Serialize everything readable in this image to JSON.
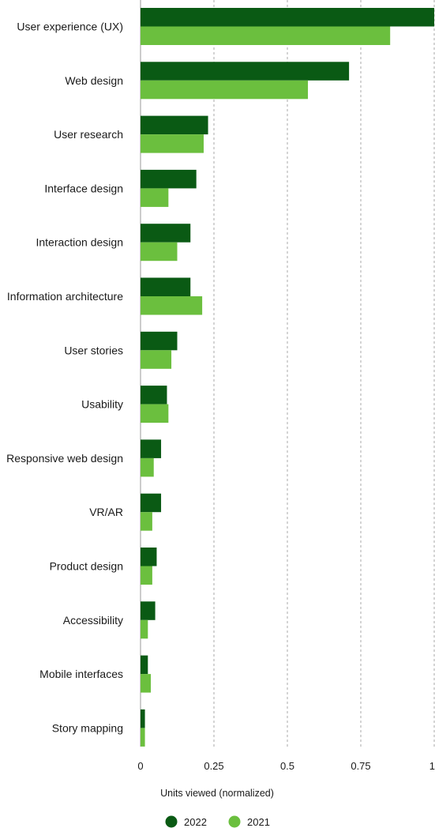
{
  "chart_data": {
    "type": "bar",
    "orientation": "horizontal",
    "categories": [
      "User experience (UX)",
      "Web design",
      "User research",
      "Interface design",
      "Interaction design",
      "Information architecture",
      "User stories",
      "Usability",
      "Responsive web design",
      "VR/AR",
      "Product design",
      "Accessibility",
      "Mobile interfaces",
      "Story mapping"
    ],
    "series": [
      {
        "name": "2022",
        "color": "#0a5a14",
        "values": [
          1.0,
          0.71,
          0.23,
          0.19,
          0.17,
          0.17,
          0.125,
          0.09,
          0.07,
          0.07,
          0.055,
          0.05,
          0.025,
          0.015
        ]
      },
      {
        "name": "2021",
        "color": "#6bbf3e",
        "values": [
          0.85,
          0.57,
          0.215,
          0.095,
          0.125,
          0.21,
          0.105,
          0.095,
          0.045,
          0.04,
          0.04,
          0.025,
          0.035,
          0.015
        ]
      }
    ],
    "xlabel": "Units viewed (normalized)",
    "xlim": [
      0,
      1
    ],
    "xticks": [
      0,
      0.25,
      0.5,
      0.75,
      1
    ],
    "xtick_labels": [
      "0",
      "0.25",
      "0.5",
      "0.75",
      "1"
    ],
    "grid": "vertical-dashed",
    "legend": "bottom-center"
  }
}
